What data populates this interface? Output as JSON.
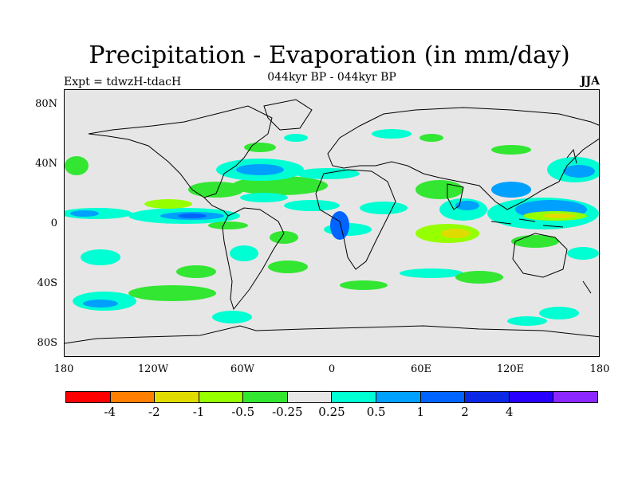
{
  "title": "Precipitation - Evaporation (in mm/day)",
  "subtitle": "044kyr BP - 044kyr BP",
  "left_string": "Expt = tdwzH-tdacH",
  "right_string": "JJA",
  "lat_labels": [
    "80N",
    "40N",
    "0",
    "40S",
    "80S"
  ],
  "lon_labels": [
    "180",
    "120W",
    "60W",
    "0",
    "60E",
    "120E",
    "180"
  ],
  "colorbar": {
    "colors": [
      "#ff0000",
      "#ff8000",
      "#e1dc00",
      "#96ff00",
      "#32e632",
      "#e6e6e6",
      "#00ffd2",
      "#00a0ff",
      "#0064ff",
      "#0a28e6",
      "#2800ff",
      "#8c28ff"
    ],
    "labels": [
      "-4",
      "-2",
      "-1",
      "-0.5",
      "-0.25",
      "0.25",
      "0.5",
      "1",
      "2",
      "4"
    ]
  },
  "map": {
    "background": "#e6e6e6",
    "field_colors": {
      "wet_light": "#00ffd2",
      "wet_mid": "#00a0ff",
      "wet_strong": "#0064ff",
      "dry_light": "#32e632",
      "dry_mid": "#96ff00",
      "dry_strong": "#e1dc00"
    }
  }
}
